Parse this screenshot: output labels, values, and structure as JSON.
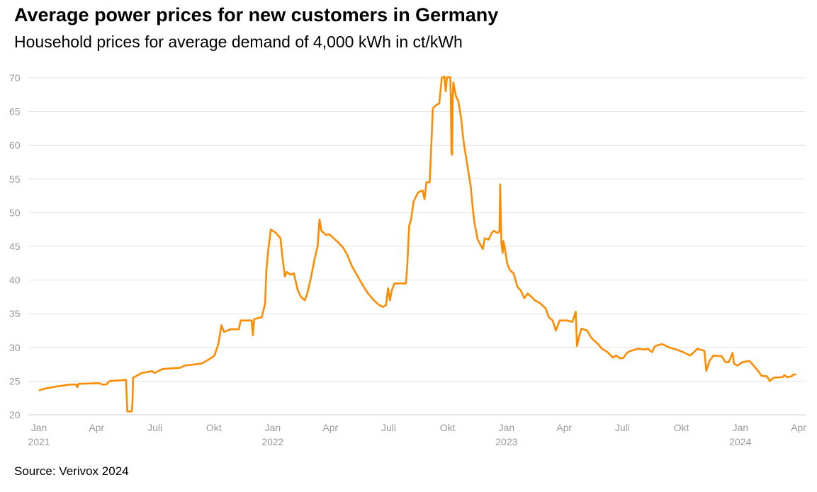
{
  "chart_data": {
    "type": "line",
    "title": "Average power prices for new customers in Germany",
    "subtitle": "Household prices for average demand of 4,000 kWh in ct/kWh",
    "source": "Source: Verivox 2024",
    "xlabel": "",
    "ylabel": "",
    "ylim": [
      20,
      70
    ],
    "xlim": [
      "2021-01-01",
      "2024-04-01"
    ],
    "grid": true,
    "line_color": "#ff8c00",
    "y_ticks": [
      20,
      25,
      30,
      35,
      40,
      45,
      50,
      55,
      60,
      65,
      70
    ],
    "x_ticks": [
      {
        "date": "2021-01-01",
        "label": "Jan",
        "year": "2021"
      },
      {
        "date": "2021-04-01",
        "label": "Apr",
        "year": ""
      },
      {
        "date": "2021-07-01",
        "label": "Juli",
        "year": ""
      },
      {
        "date": "2021-10-01",
        "label": "Okt",
        "year": ""
      },
      {
        "date": "2022-01-01",
        "label": "Jan",
        "year": "2022"
      },
      {
        "date": "2022-04-01",
        "label": "Apr",
        "year": ""
      },
      {
        "date": "2022-07-01",
        "label": "Juli",
        "year": ""
      },
      {
        "date": "2022-10-01",
        "label": "Okt",
        "year": ""
      },
      {
        "date": "2023-01-01",
        "label": "Jan",
        "year": "2023"
      },
      {
        "date": "2023-04-01",
        "label": "Apr",
        "year": ""
      },
      {
        "date": "2023-07-01",
        "label": "Juli",
        "year": ""
      },
      {
        "date": "2023-10-01",
        "label": "Okt",
        "year": ""
      },
      {
        "date": "2024-01-01",
        "label": "Jan",
        "year": "2024"
      },
      {
        "date": "2024-04-01",
        "label": "Apr",
        "year": ""
      }
    ],
    "series": [
      {
        "points": [
          [
            "2021-01-01",
            23.6
          ],
          [
            "2021-01-06",
            23.8
          ],
          [
            "2021-01-28",
            24.2
          ],
          [
            "2021-02-19",
            24.5
          ],
          [
            "2021-02-28",
            24.5
          ],
          [
            "2021-03-02",
            24.1
          ],
          [
            "2021-03-04",
            24.6
          ],
          [
            "2021-04-05",
            24.7
          ],
          [
            "2021-04-10",
            24.5
          ],
          [
            "2021-04-16",
            24.5
          ],
          [
            "2021-04-21",
            25.0
          ],
          [
            "2021-05-17",
            25.2
          ],
          [
            "2021-05-19",
            20.5
          ],
          [
            "2021-05-26",
            20.5
          ],
          [
            "2021-05-27",
            22.0
          ],
          [
            "2021-05-28",
            25.5
          ],
          [
            "2021-06-10",
            26.2
          ],
          [
            "2021-06-27",
            26.5
          ],
          [
            "2021-06-30",
            26.2
          ],
          [
            "2021-07-13",
            26.8
          ],
          [
            "2021-08-10",
            27.0
          ],
          [
            "2021-08-16",
            27.3
          ],
          [
            "2021-09-12",
            27.6
          ],
          [
            "2021-09-23",
            28.2
          ],
          [
            "2021-10-02",
            28.8
          ],
          [
            "2021-10-08",
            30.5
          ],
          [
            "2021-10-13",
            33.3
          ],
          [
            "2021-10-17",
            32.3
          ],
          [
            "2021-10-27",
            32.7
          ],
          [
            "2021-11-09",
            32.7
          ],
          [
            "2021-11-12",
            34.0
          ],
          [
            "2021-11-29",
            34.0
          ],
          [
            "2021-12-01",
            31.8
          ],
          [
            "2021-12-03",
            34.2
          ],
          [
            "2021-12-15",
            34.5
          ],
          [
            "2021-12-20",
            36.5
          ],
          [
            "2021-12-22",
            41.3
          ],
          [
            "2021-12-25",
            44.5
          ],
          [
            "2021-12-29",
            47.5
          ],
          [
            "2022-01-06",
            47.0
          ],
          [
            "2022-01-13",
            46.2
          ],
          [
            "2022-01-16",
            43.5
          ],
          [
            "2022-01-20",
            40.5
          ],
          [
            "2022-01-23",
            41.2
          ],
          [
            "2022-01-29",
            40.8
          ],
          [
            "2022-02-03",
            41.0
          ],
          [
            "2022-02-09",
            38.5
          ],
          [
            "2022-02-14",
            37.5
          ],
          [
            "2022-02-20",
            37.0
          ],
          [
            "2022-02-24",
            38.0
          ],
          [
            "2022-03-02",
            40.5
          ],
          [
            "2022-03-07",
            43.0
          ],
          [
            "2022-03-12",
            45.0
          ],
          [
            "2022-03-15",
            49.0
          ],
          [
            "2022-03-18",
            47.3
          ],
          [
            "2022-03-25",
            46.7
          ],
          [
            "2022-03-30",
            46.8
          ],
          [
            "2022-04-05",
            46.3
          ],
          [
            "2022-04-14",
            45.5
          ],
          [
            "2022-04-21",
            44.8
          ],
          [
            "2022-04-27",
            43.8
          ],
          [
            "2022-05-05",
            42.0
          ],
          [
            "2022-05-14",
            40.5
          ],
          [
            "2022-05-21",
            39.3
          ],
          [
            "2022-05-30",
            38.0
          ],
          [
            "2022-06-08",
            37.0
          ],
          [
            "2022-06-16",
            36.3
          ],
          [
            "2022-06-22",
            36.0
          ],
          [
            "2022-06-27",
            36.3
          ],
          [
            "2022-06-30",
            38.8
          ],
          [
            "2022-07-03",
            37.0
          ],
          [
            "2022-07-06",
            38.5
          ],
          [
            "2022-07-10",
            39.5
          ],
          [
            "2022-07-28",
            39.5
          ],
          [
            "2022-07-30",
            42.0
          ],
          [
            "2022-08-02",
            48.0
          ],
          [
            "2022-08-05",
            49.0
          ],
          [
            "2022-08-09",
            51.7
          ],
          [
            "2022-08-16",
            53.0
          ],
          [
            "2022-08-23",
            53.3
          ],
          [
            "2022-08-26",
            52.0
          ],
          [
            "2022-08-29",
            54.5
          ],
          [
            "2022-09-03",
            54.5
          ],
          [
            "2022-09-06",
            61.0
          ],
          [
            "2022-09-08",
            65.5
          ],
          [
            "2022-09-14",
            66.0
          ],
          [
            "2022-09-18",
            66.2
          ],
          [
            "2022-09-22",
            70.0
          ],
          [
            "2022-09-26",
            70.2
          ],
          [
            "2022-09-28",
            68.0
          ],
          [
            "2022-09-30",
            70.1
          ],
          [
            "2022-10-05",
            70.1
          ],
          [
            "2022-10-06",
            67.5
          ],
          [
            "2022-10-07",
            58.8
          ],
          [
            "2022-10-08",
            58.6
          ],
          [
            "2022-10-09",
            67.0
          ],
          [
            "2022-10-10",
            69.3
          ],
          [
            "2022-10-14",
            67.3
          ],
          [
            "2022-10-18",
            66.5
          ],
          [
            "2022-10-22",
            64.0
          ],
          [
            "2022-10-26",
            60.5
          ],
          [
            "2022-10-31",
            57.5
          ],
          [
            "2022-11-06",
            54.0
          ],
          [
            "2022-11-10",
            50.0
          ],
          [
            "2022-11-12",
            48.5
          ],
          [
            "2022-11-17",
            46.0
          ],
          [
            "2022-11-21",
            45.3
          ],
          [
            "2022-11-25",
            44.6
          ],
          [
            "2022-11-28",
            46.2
          ],
          [
            "2022-12-04",
            46.0
          ],
          [
            "2022-12-09",
            47.0
          ],
          [
            "2022-12-12",
            47.3
          ],
          [
            "2022-12-18",
            47.0
          ],
          [
            "2022-12-21",
            47.2
          ],
          [
            "2022-12-22",
            54.2
          ],
          [
            "2022-12-24",
            45.5
          ],
          [
            "2022-12-26",
            44.0
          ],
          [
            "2022-12-27",
            45.8
          ],
          [
            "2022-12-29",
            45.0
          ],
          [
            "2023-01-02",
            42.5
          ],
          [
            "2023-01-06",
            41.5
          ],
          [
            "2023-01-12",
            41.0
          ],
          [
            "2023-01-18",
            39.0
          ],
          [
            "2023-01-23",
            38.5
          ],
          [
            "2023-01-29",
            37.3
          ],
          [
            "2023-02-03",
            38.0
          ],
          [
            "2023-02-09",
            37.5
          ],
          [
            "2023-02-14",
            37.0
          ],
          [
            "2023-02-22",
            36.6
          ],
          [
            "2023-03-03",
            35.8
          ],
          [
            "2023-03-08",
            34.5
          ],
          [
            "2023-03-14",
            34.0
          ],
          [
            "2023-03-19",
            32.5
          ],
          [
            "2023-03-25",
            34.0
          ],
          [
            "2023-04-05",
            34.0
          ],
          [
            "2023-04-14",
            33.8
          ],
          [
            "2023-04-19",
            35.3
          ],
          [
            "2023-04-21",
            30.2
          ],
          [
            "2023-04-24",
            31.5
          ],
          [
            "2023-04-28",
            32.8
          ],
          [
            "2023-05-07",
            32.5
          ],
          [
            "2023-05-13",
            31.5
          ],
          [
            "2023-05-18",
            31.0
          ],
          [
            "2023-05-24",
            30.5
          ],
          [
            "2023-05-30",
            29.8
          ],
          [
            "2023-06-08",
            29.3
          ],
          [
            "2023-06-16",
            28.5
          ],
          [
            "2023-06-21",
            28.8
          ],
          [
            "2023-06-27",
            28.4
          ],
          [
            "2023-07-02",
            28.4
          ],
          [
            "2023-07-08",
            29.2
          ],
          [
            "2023-07-14",
            29.5
          ],
          [
            "2023-07-25",
            29.8
          ],
          [
            "2023-08-05",
            29.7
          ],
          [
            "2023-08-10",
            29.8
          ],
          [
            "2023-08-16",
            29.3
          ],
          [
            "2023-08-21",
            30.2
          ],
          [
            "2023-09-01",
            30.5
          ],
          [
            "2023-09-12",
            30.0
          ],
          [
            "2023-09-23",
            29.7
          ],
          [
            "2023-10-04",
            29.3
          ],
          [
            "2023-10-15",
            28.8
          ],
          [
            "2023-10-26",
            29.8
          ],
          [
            "2023-11-06",
            29.5
          ],
          [
            "2023-11-09",
            26.5
          ],
          [
            "2023-11-14",
            28.0
          ],
          [
            "2023-11-20",
            28.8
          ],
          [
            "2023-12-03",
            28.7
          ],
          [
            "2023-12-09",
            27.8
          ],
          [
            "2023-12-14",
            27.8
          ],
          [
            "2023-12-20",
            29.2
          ],
          [
            "2023-12-22",
            27.6
          ],
          [
            "2023-12-28",
            27.3
          ],
          [
            "2024-01-04",
            27.8
          ],
          [
            "2024-01-15",
            28.0
          ],
          [
            "2024-01-21",
            27.4
          ],
          [
            "2024-01-29",
            26.5
          ],
          [
            "2024-02-03",
            25.8
          ],
          [
            "2024-02-12",
            25.7
          ],
          [
            "2024-02-16",
            25.0
          ],
          [
            "2024-02-22",
            25.5
          ],
          [
            "2024-03-07",
            25.6
          ],
          [
            "2024-03-10",
            25.9
          ],
          [
            "2024-03-14",
            25.6
          ],
          [
            "2024-03-21",
            25.7
          ],
          [
            "2024-03-24",
            26.0
          ],
          [
            "2024-03-28",
            26.0
          ]
        ]
      }
    ]
  }
}
